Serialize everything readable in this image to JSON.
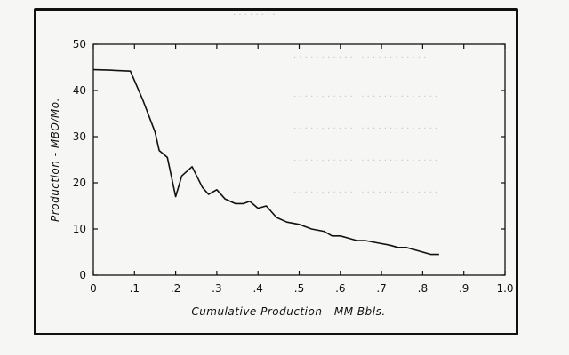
{
  "chart_data": {
    "type": "line",
    "title": "",
    "xlabel": "Cumulative Production - MM Bbls.",
    "ylabel": "Production - MBO/Mo.",
    "xlim": [
      0,
      1.0
    ],
    "ylim": [
      0,
      50
    ],
    "grid": false,
    "x_tick_labels": [
      "0",
      ".1",
      ".2",
      ".3",
      ".4",
      ".5",
      ".6",
      ".7",
      ".8",
      ".9",
      "1.0"
    ],
    "x_tick_values": [
      0,
      0.1,
      0.2,
      0.3,
      0.4,
      0.5,
      0.6,
      0.7,
      0.8,
      0.9,
      1.0
    ],
    "y_tick_labels": [
      "0",
      "10",
      "20",
      "30",
      "40",
      "50"
    ],
    "y_tick_values": [
      0,
      10,
      20,
      30,
      40,
      50
    ],
    "series": [
      {
        "color": "#111111",
        "x": [
          0.0,
          0.04,
          0.09,
          0.12,
          0.15,
          0.16,
          0.18,
          0.2,
          0.215,
          0.24,
          0.265,
          0.275,
          0.28,
          0.3,
          0.32,
          0.345,
          0.365,
          0.38,
          0.4,
          0.42,
          0.445,
          0.47,
          0.5,
          0.53,
          0.56,
          0.58,
          0.6,
          0.62,
          0.64,
          0.66,
          0.69,
          0.72,
          0.74,
          0.76,
          0.78,
          0.8,
          0.82,
          0.84
        ],
        "y": [
          44.5,
          44.4,
          44.2,
          38.0,
          31.0,
          27.0,
          25.5,
          17.0,
          21.5,
          23.5,
          19.0,
          18.0,
          17.5,
          18.5,
          16.5,
          15.5,
          15.5,
          16.0,
          14.5,
          15.0,
          12.5,
          11.5,
          11.0,
          10.0,
          9.5,
          8.5,
          8.5,
          8.0,
          7.5,
          7.5,
          7.0,
          6.5,
          6.0,
          6.0,
          5.5,
          5.0,
          4.5,
          4.5
        ]
      }
    ]
  }
}
